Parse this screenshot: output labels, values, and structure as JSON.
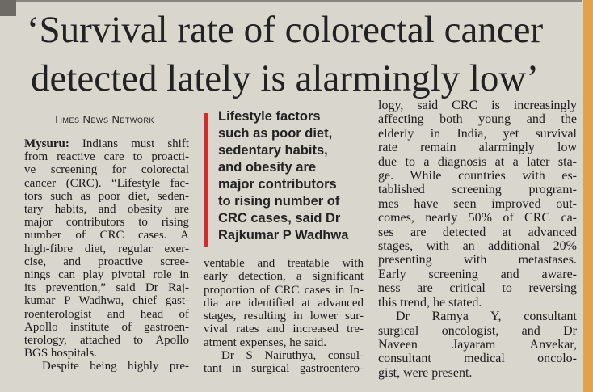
{
  "headline": [
    "‘Survival rate of colorectal cancer",
    "detected lately is alarmingly low’"
  ],
  "byline": "Times News Network",
  "column1": {
    "lead": "Mysuru:",
    "lines": [
      "Indians must shift",
      "from reactive care to proacti-",
      "ve screening for colorectal",
      "cancer (CRC). “Lifestyle fac-",
      "tors such as poor diet, seden-",
      "tary habits, and obesity are",
      "major contributors to rising",
      "number of CRC cases. A",
      "high-fibre diet, regular exer-",
      "cise, and proactive scree-",
      "nings can play pivotal role in",
      "its prevention,” said Dr Raj-",
      "kumar P Wadhwa, chief gast-",
      "roenterologist and head of",
      "Apollo institute of gastroen-",
      "terology, attached to Apollo",
      "BGS hospitals.",
      "Despite being highly pre-"
    ]
  },
  "pull_quote": [
    "Lifestyle factors",
    "such as poor diet,",
    "sedentary habits,",
    "and obesity are",
    "major contributors",
    "to rising number of",
    "CRC cases, said Dr",
    "Rajkumar P Wadhwa"
  ],
  "column2": [
    "ventable and treatable with",
    "early detection, a significant",
    "proportion of CRC cases in In-",
    "dia are identified at advanced",
    "stages, resulting in lower sur-",
    "vival rates and increased tre-",
    "atment expenses, he said.",
    "Dr S Nairuthya, consul-",
    "tant in surgical gastroentero-"
  ],
  "column3": [
    "logy, said CRC is increasingly",
    "affecting both young and the",
    "elderly in India, yet survival",
    "rate remain alarmingly low",
    "due to a diagnosis at a later sta-",
    "ge. While countries with es-",
    "tablished screening program-",
    "mes have seen improved out-",
    "comes, nearly 50% of CRC ca-",
    "ses are detected at advanced",
    "stages, with an additional 20%",
    "presenting with metastases.",
    "Early screening and aware-",
    "ness are critical to reversing",
    "this trend, he stated.",
    "Dr Ramya Y, consultant",
    "surgical oncologist, and Dr",
    "Naveen Jayaram Anvekar,",
    "consultant medical oncolo-",
    "gist, were present."
  ]
}
